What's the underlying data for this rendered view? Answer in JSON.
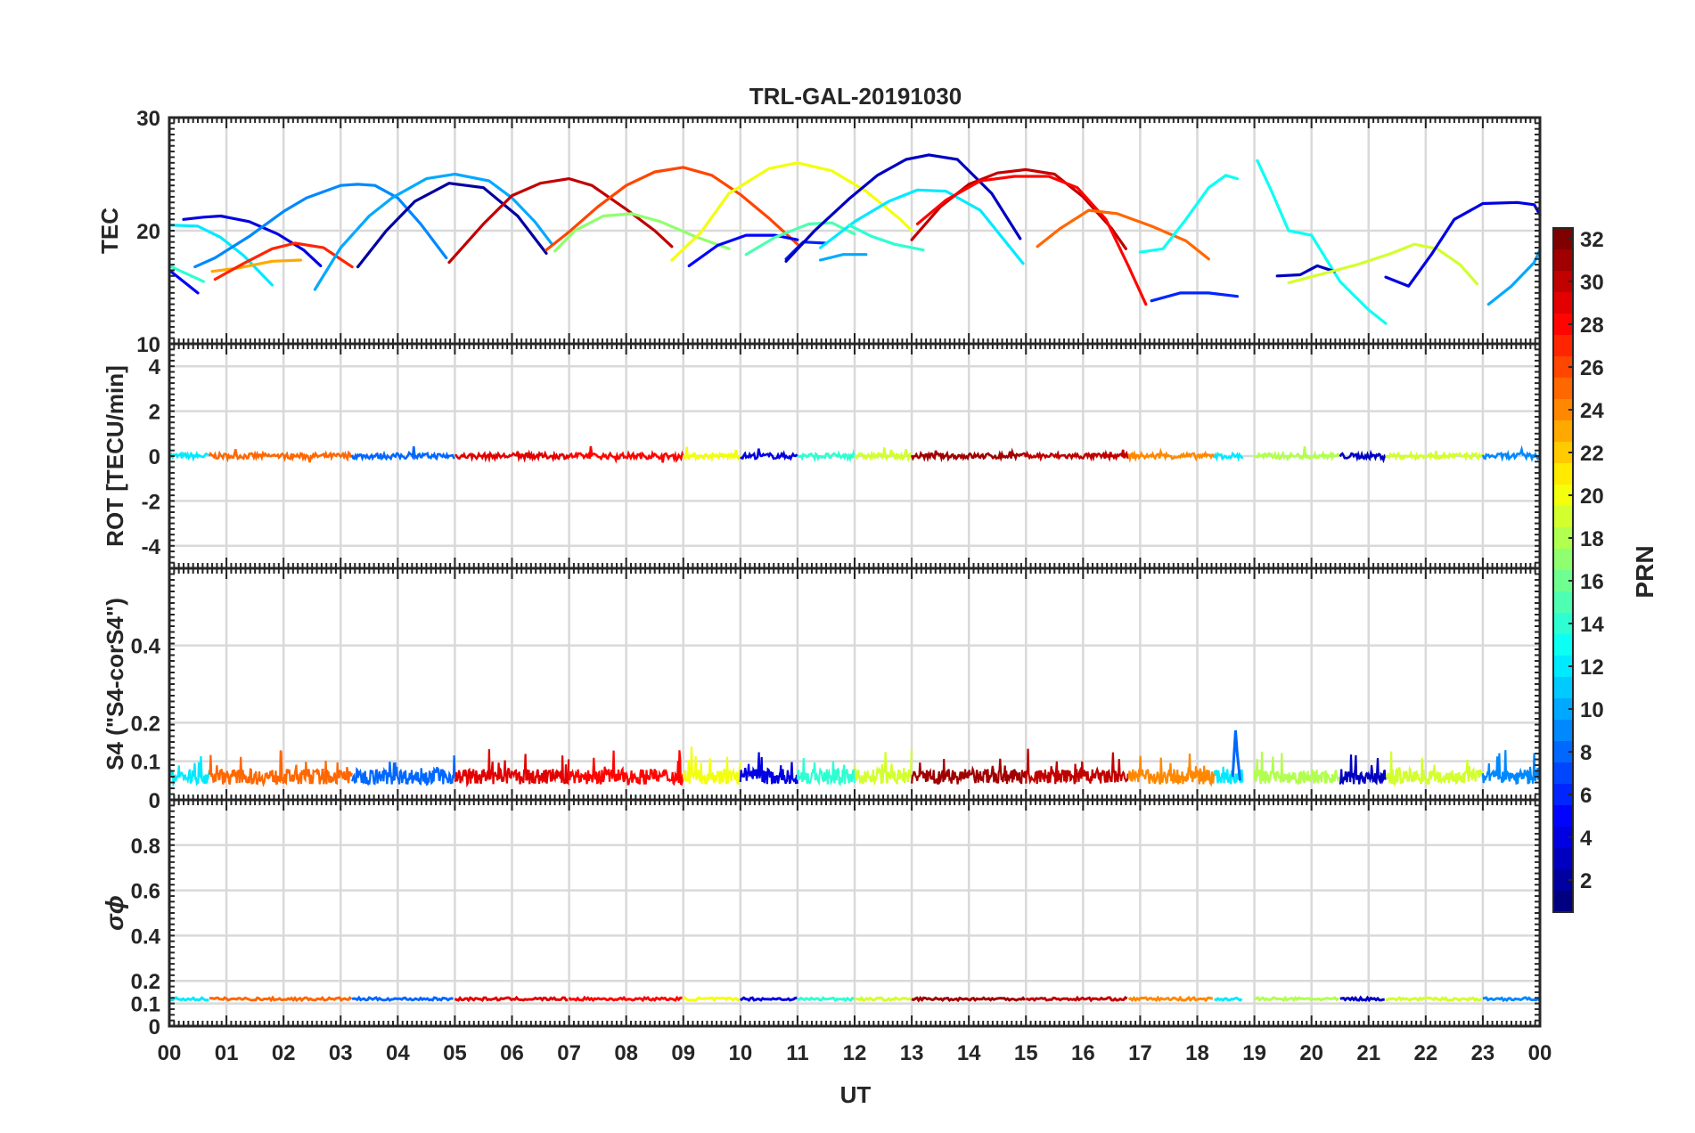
{
  "chart_data": {
    "type": "line",
    "title": "TRL-GAL-20191030",
    "xlabel": "UT",
    "x_range_hours": [
      0,
      24
    ],
    "x_tick_labels": [
      "00",
      "01",
      "02",
      "03",
      "04",
      "05",
      "06",
      "07",
      "08",
      "09",
      "10",
      "11",
      "12",
      "13",
      "14",
      "15",
      "16",
      "17",
      "18",
      "19",
      "20",
      "21",
      "22",
      "23",
      "00"
    ],
    "panels": [
      {
        "id": "tec",
        "ylabel": "TEC",
        "ylim": [
          10,
          30
        ],
        "y_ticks": [
          10,
          20,
          30
        ],
        "grid": true,
        "series": [
          {
            "prn": 5,
            "x": [
              0.0,
              0.5
            ],
            "y": [
              16.5,
              14.5
            ]
          },
          {
            "prn": 14,
            "x": [
              0.0,
              0.6
            ],
            "y": [
              16.9,
              15.5
            ]
          },
          {
            "prn": 4,
            "x": [
              0.25,
              0.6,
              0.9,
              1.4,
              1.9,
              2.35,
              2.65
            ],
            "y": [
              21.0,
              21.2,
              21.3,
              20.8,
              19.7,
              18.3,
              16.9
            ]
          },
          {
            "prn": 12,
            "x": [
              0.0,
              0.5,
              0.9,
              1.3,
              1.8
            ],
            "y": [
              20.5,
              20.4,
              19.4,
              17.8,
              15.2
            ]
          },
          {
            "prn": 9,
            "x": [
              0.45,
              0.8,
              1.4,
              2.0,
              2.4,
              3.0,
              3.3,
              3.6,
              4.0,
              4.4,
              4.85
            ],
            "y": [
              16.8,
              17.6,
              19.5,
              21.7,
              22.9,
              24.0,
              24.1,
              24.0,
              22.9,
              20.6,
              17.6
            ]
          },
          {
            "prn": 23,
            "x": [
              0.75,
              1.2,
              1.8,
              2.3
            ],
            "y": [
              16.4,
              16.7,
              17.3,
              17.4
            ]
          },
          {
            "prn": 27,
            "x": [
              0.8,
              1.3,
              1.8,
              2.2,
              2.7,
              3.2
            ],
            "y": [
              15.7,
              17.1,
              18.4,
              18.9,
              18.5,
              16.8
            ]
          },
          {
            "prn": 10,
            "x": [
              2.55,
              3.0,
              3.5,
              3.9,
              4.5,
              5.0,
              5.6,
              6.0,
              6.4,
              6.7
            ],
            "y": [
              14.8,
              18.5,
              21.3,
              22.9,
              24.6,
              25.0,
              24.4,
              22.9,
              20.8,
              18.8
            ]
          },
          {
            "prn": 2,
            "x": [
              3.3,
              3.8,
              4.3,
              4.9,
              5.5,
              6.1,
              6.6
            ],
            "y": [
              16.8,
              20.0,
              22.6,
              24.2,
              23.8,
              21.3,
              18.0
            ]
          },
          {
            "prn": 30,
            "x": [
              4.9,
              5.5,
              6.0,
              6.5,
              7.0,
              7.4,
              8.0,
              8.5,
              8.8
            ],
            "y": [
              17.2,
              20.6,
              23.1,
              24.2,
              24.6,
              24.0,
              21.9,
              20.0,
              18.6
            ]
          },
          {
            "prn": 26,
            "x": [
              6.6,
              7.0,
              7.5,
              8.0,
              8.5,
              9.0,
              9.5,
              10.0,
              10.5,
              11.0
            ],
            "y": [
              18.3,
              19.9,
              22.1,
              24.0,
              25.2,
              25.6,
              24.9,
              23.2,
              21.1,
              18.8
            ]
          },
          {
            "prn": 17,
            "x": [
              6.75,
              7.1,
              7.6,
              8.1,
              8.6,
              9.2,
              9.8
            ],
            "y": [
              18.2,
              20.0,
              21.3,
              21.5,
              20.8,
              19.5,
              18.4
            ]
          },
          {
            "prn": 20,
            "x": [
              8.8,
              9.3,
              9.8,
              10.5,
              11.0,
              11.6,
              12.2,
              12.8,
              13.0
            ],
            "y": [
              17.4,
              19.8,
              23.3,
              25.5,
              26.0,
              25.3,
              23.5,
              21.0,
              20.0
            ]
          },
          {
            "prn": 5,
            "x": [
              9.1,
              9.6,
              10.1,
              10.6,
              11.0
            ],
            "y": [
              16.9,
              18.7,
              19.6,
              19.6,
              19.2
            ]
          },
          {
            "prn": 6,
            "x": [
              10.8,
              11.1,
              11.5
            ],
            "y": [
              17.5,
              19.0,
              18.9
            ]
          },
          {
            "prn": 15,
            "x": [
              10.1,
              10.6,
              11.2,
              11.6,
              12.0
            ],
            "y": [
              17.9,
              19.4,
              20.6,
              20.7,
              19.7
            ]
          },
          {
            "prn": 12,
            "x": [
              11.4,
              12.0,
              12.6,
              13.1,
              13.6,
              14.2,
              14.95
            ],
            "y": [
              18.5,
              20.8,
              22.6,
              23.6,
              23.5,
              21.8,
              17.1
            ]
          },
          {
            "prn": 14,
            "x": [
              11.9,
              12.3,
              12.7,
              13.2
            ],
            "y": [
              20.5,
              19.5,
              18.8,
              18.3
            ]
          },
          {
            "prn": 10,
            "x": [
              11.4,
              11.8,
              12.2
            ],
            "y": [
              17.4,
              17.9,
              17.9
            ]
          },
          {
            "prn": 3,
            "x": [
              10.8,
              11.3,
              11.9,
              12.4,
              12.9,
              13.3,
              13.8,
              14.4,
              14.9
            ],
            "y": [
              17.3,
              20.0,
              22.8,
              24.9,
              26.3,
              26.7,
              26.3,
              23.3,
              19.3
            ]
          },
          {
            "prn": 30,
            "x": [
              13.0,
              13.5,
              14.0,
              14.5,
              15.0,
              15.5,
              16.0,
              16.5,
              16.75
            ],
            "y": [
              19.2,
              22.1,
              24.1,
              25.1,
              25.4,
              25.0,
              23.0,
              20.2,
              18.4
            ]
          },
          {
            "prn": 28,
            "x": [
              13.1,
              13.6,
              14.2,
              14.8,
              15.4,
              15.9,
              16.4,
              16.8,
              17.1
            ],
            "y": [
              20.6,
              22.7,
              24.4,
              24.8,
              24.8,
              23.8,
              21.0,
              16.8,
              13.5
            ]
          },
          {
            "prn": 25,
            "x": [
              15.2,
              15.6,
              16.1,
              16.6,
              17.2,
              17.8,
              18.2
            ],
            "y": [
              18.6,
              20.2,
              21.8,
              21.5,
              20.4,
              19.1,
              17.5
            ]
          },
          {
            "prn": 6,
            "x": [
              17.2,
              17.7,
              18.2,
              18.7
            ],
            "y": [
              13.8,
              14.5,
              14.5,
              14.2
            ]
          },
          {
            "prn": 13,
            "x": [
              17.0,
              17.4,
              17.8,
              18.2,
              18.5,
              18.7
            ],
            "y": [
              18.1,
              18.4,
              21.0,
              23.8,
              24.9,
              24.6
            ]
          },
          {
            "prn": 13,
            "x": [
              19.05,
              19.3,
              19.6,
              20.0,
              20.5,
              21.0,
              21.3
            ],
            "y": [
              26.2,
              23.5,
              20.0,
              19.6,
              15.5,
              13.0,
              11.8
            ]
          },
          {
            "prn": 3,
            "x": [
              19.4,
              19.8,
              20.1,
              20.4
            ],
            "y": [
              16.0,
              16.1,
              16.9,
              16.4
            ]
          },
          {
            "prn": 19,
            "x": [
              19.6,
              20.2,
              20.8,
              21.4,
              21.8,
              22.2,
              22.6,
              22.9
            ],
            "y": [
              15.4,
              16.2,
              17.0,
              18.0,
              18.8,
              18.4,
              17.0,
              15.3
            ]
          },
          {
            "prn": 4,
            "x": [
              21.3,
              21.7,
              22.1,
              22.5,
              23.0,
              23.6,
              23.9,
              24.0
            ],
            "y": [
              15.9,
              15.1,
              17.9,
              21.0,
              22.4,
              22.5,
              22.3,
              21.4
            ]
          },
          {
            "prn": 10,
            "x": [
              23.1,
              23.5,
              23.9,
              24.0
            ],
            "y": [
              13.5,
              15.1,
              17.2,
              18.3
            ]
          }
        ]
      },
      {
        "id": "rot",
        "ylabel": "ROT [TECU/min]",
        "ylim": [
          -5,
          5
        ],
        "y_ticks": [
          -4,
          -2,
          0,
          2,
          4
        ],
        "grid": true,
        "note": "All PRNs fluctuate within about ±0.3 TECU/min around 0 across the day",
        "band_range": [
          -0.3,
          0.4
        ]
      },
      {
        "id": "s4",
        "ylabel": "S4 (\"S4-corS4\")",
        "ylim": [
          0,
          0.6
        ],
        "y_ticks": [
          0,
          0.1,
          0.2,
          0.4
        ],
        "grid": true,
        "note": "Noisy S4 traces mostly between 0.02 and 0.12 with peaks up to about 0.18 near 18.7 UT",
        "band_range": [
          0.02,
          0.12
        ],
        "peak": {
          "x": 18.7,
          "y": 0.18
        }
      },
      {
        "id": "sigma_phi",
        "ylabel": "σϕ",
        "ylim": [
          0,
          1.0
        ],
        "y_ticks": [
          0,
          0.1,
          0.2,
          0.4,
          0.6,
          0.8
        ],
        "grid": true,
        "note": "Sigma phi remains near 0.12 for all PRNs",
        "level": 0.12
      }
    ],
    "colorbar": {
      "label": "PRN",
      "range": [
        1,
        32
      ],
      "ticks": [
        2,
        4,
        6,
        8,
        10,
        12,
        14,
        16,
        18,
        20,
        22,
        24,
        26,
        28,
        30,
        32
      ],
      "colormap": "jet"
    }
  }
}
